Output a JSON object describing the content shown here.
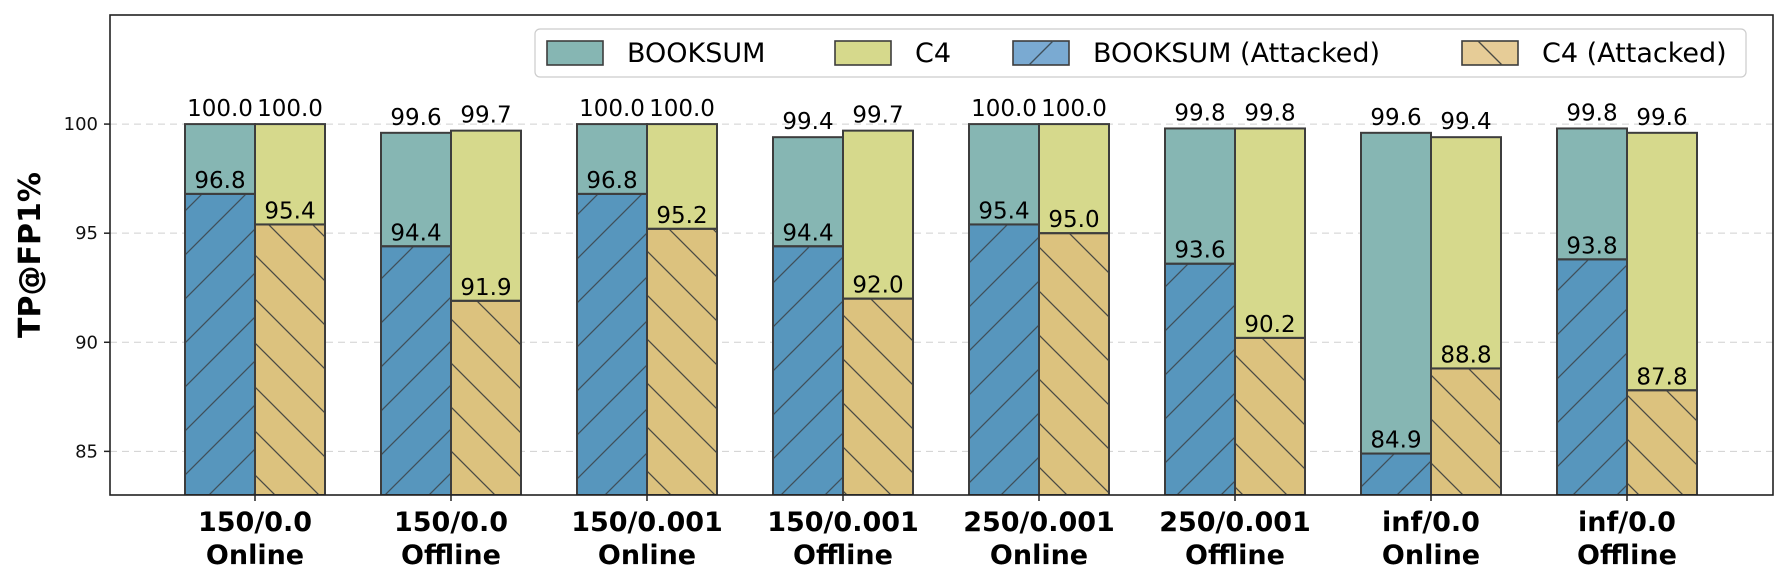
{
  "chart_data": {
    "type": "bar",
    "ylabel": "TP@FP1%",
    "xlabel": "",
    "ylim": [
      83,
      105
    ],
    "yticks": [
      85,
      90,
      95,
      100
    ],
    "grid": "y-dashed",
    "legend_position": "top-right",
    "categories": [
      [
        "150/0.0",
        "Online"
      ],
      [
        "150/0.0",
        "Offline"
      ],
      [
        "150/0.001",
        "Online"
      ],
      [
        "150/0.001",
        "Offline"
      ],
      [
        "250/0.001",
        "Online"
      ],
      [
        "250/0.001",
        "Offline"
      ],
      [
        "inf/0.0",
        "Online"
      ],
      [
        "inf/0.0",
        "Offline"
      ]
    ],
    "series": [
      {
        "name": "BOOKSUM",
        "color": "#86b6b3",
        "pattern": "none",
        "values": [
          100.0,
          99.6,
          100.0,
          99.4,
          100.0,
          99.8,
          99.6,
          99.8
        ],
        "labels": [
          "100.0",
          "99.6",
          "100.0",
          "99.4",
          "100.0",
          "99.8",
          "99.6",
          "99.8"
        ]
      },
      {
        "name": "C4",
        "color": "#d6d98c",
        "pattern": "none",
        "values": [
          100.0,
          99.7,
          100.0,
          99.7,
          100.0,
          99.8,
          99.4,
          99.6
        ],
        "labels": [
          "100.0",
          "99.7",
          "100.0",
          "99.7",
          "100.0",
          "99.8",
          "99.4",
          "99.6"
        ]
      },
      {
        "name": "BOOKSUM (Attacked)",
        "color": "#5796bd",
        "legend_color": "#7aaad2",
        "pattern": "forward-slash",
        "values": [
          96.8,
          94.4,
          96.8,
          94.4,
          95.4,
          93.6,
          84.9,
          93.8
        ],
        "labels": [
          "96.8",
          "94.4",
          "96.8",
          "94.4",
          "95.4",
          "93.6",
          "84.9",
          "93.8"
        ]
      },
      {
        "name": "C4 (Attacked)",
        "color": "#dcc27e",
        "legend_color": "#e6cc97",
        "pattern": "back-slash",
        "values": [
          95.4,
          91.9,
          95.2,
          92.0,
          95.0,
          90.2,
          88.8,
          87.8
        ],
        "labels": [
          "95.4",
          "91.9",
          "95.2",
          "92.0",
          "95.0",
          "90.2",
          "88.8",
          "87.8"
        ]
      }
    ]
  }
}
